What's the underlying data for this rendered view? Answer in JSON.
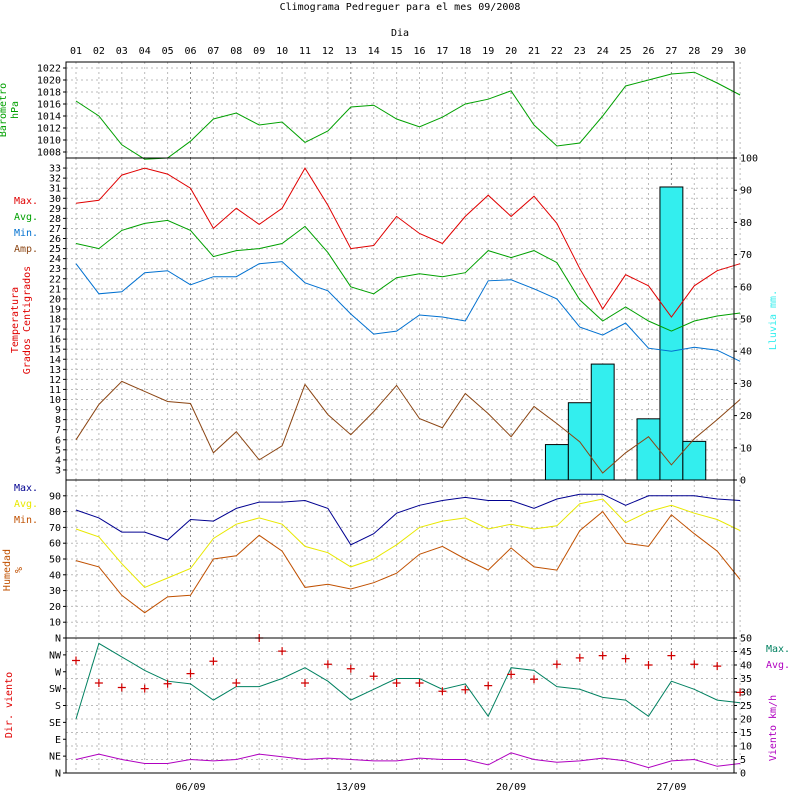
{
  "chart_data": {
    "type": "line",
    "title": "Climograma Pedreguer para el mes 09/2008",
    "top_axis_label": "Dia",
    "days": [
      "01",
      "02",
      "03",
      "04",
      "05",
      "06",
      "07",
      "08",
      "09",
      "10",
      "11",
      "12",
      "13",
      "14",
      "15",
      "16",
      "17",
      "18",
      "19",
      "20",
      "21",
      "22",
      "23",
      "24",
      "25",
      "26",
      "27",
      "28",
      "29",
      "30"
    ],
    "bottom_ticks": [
      {
        "day": 6,
        "label": "06/09"
      },
      {
        "day": 13,
        "label": "13/09"
      },
      {
        "day": 20,
        "label": "20/09"
      },
      {
        "day": 27,
        "label": "27/09"
      }
    ],
    "colors": {
      "green": "#00a000",
      "red": "#e00000",
      "blue": "#0070d0",
      "brown": "#8b4513",
      "navy": "#000090",
      "yellow": "#e8e800",
      "orange": "#c05000",
      "teal": "#008060",
      "magenta": "#b000c0",
      "cyan": "#33eeee",
      "plus": "#d00000"
    },
    "panels": {
      "barometer": {
        "ylabel": [
          "Barometro",
          "hPa"
        ],
        "ylim": [
          1007,
          1023
        ],
        "ticks": [
          1008,
          1010,
          1012,
          1014,
          1016,
          1018,
          1020,
          1022
        ],
        "series": [
          {
            "legend": "",
            "color": "green",
            "values": [
              1016.5,
              1014,
              1009.2,
              1006.8,
              1007,
              1009.8,
              1013.5,
              1014.5,
              1012.5,
              1013,
              1009.6,
              1011.5,
              1015.5,
              1015.8,
              1013.5,
              1012.2,
              1013.8,
              1016,
              1016.8,
              1018.2,
              1012.5,
              1009,
              1009.5,
              1014,
              1019,
              1020,
              1021,
              1021.3,
              1019.5,
              1017.5
            ]
          }
        ]
      },
      "temperature": {
        "ylabel": [
          "Temperatura",
          "Grados Centigrados"
        ],
        "ylim": [
          2,
          34
        ],
        "ticks": [
          3,
          4,
          5,
          6,
          7,
          8,
          9,
          10,
          11,
          12,
          13,
          14,
          15,
          16,
          17,
          18,
          19,
          20,
          21,
          22,
          23,
          24,
          25,
          26,
          27,
          28,
          29,
          30,
          31,
          32,
          33
        ],
        "legend": [
          "Max.",
          "Avg.",
          "Min.",
          "Amp."
        ],
        "series": [
          {
            "legend": "Max.",
            "color": "red",
            "values": [
              29.5,
              29.8,
              32.3,
              33,
              32.4,
              31,
              27,
              29,
              27.4,
              29,
              33,
              29.3,
              25,
              25.3,
              28.2,
              26.5,
              25.5,
              28.2,
              30.3,
              28.2,
              30.2,
              27.5,
              23,
              19,
              22.4,
              21.3,
              18.2,
              21.3,
              22.8,
              23.5
            ]
          },
          {
            "legend": "Avg.",
            "color": "green",
            "values": [
              25.5,
              25,
              26.8,
              27.5,
              27.8,
              26.8,
              24.2,
              24.8,
              25,
              25.5,
              27.2,
              24.6,
              21.2,
              20.5,
              22.1,
              22.5,
              22.2,
              22.6,
              24.8,
              24.1,
              24.8,
              23.6,
              19.9,
              17.8,
              19.2,
              17.8,
              16.8,
              17.8,
              18.3,
              18.6
            ]
          },
          {
            "legend": "Min.",
            "color": "blue",
            "values": [
              23.5,
              20.5,
              20.7,
              22.6,
              22.8,
              21.4,
              22.2,
              22.2,
              23.5,
              23.7,
              21.6,
              20.8,
              18.5,
              16.5,
              16.8,
              18.4,
              18.2,
              17.8,
              21.8,
              21.9,
              21,
              20,
              17.2,
              16.4,
              17.6,
              15.1,
              14.8,
              15.2,
              14.9,
              13.8
            ]
          },
          {
            "legend": "Amp.",
            "color": "brown",
            "values": [
              6,
              9.5,
              11.8,
              10.8,
              9.8,
              9.6,
              4.7,
              6.8,
              4,
              5.4,
              11.5,
              8.5,
              6.5,
              8.8,
              11.4,
              8.1,
              7.2,
              10.6,
              8.6,
              6.3,
              9.3,
              7.6,
              5.8,
              2.7,
              4.7,
              6.3,
              3.5,
              6.1,
              8,
              10
            ]
          }
        ]
      },
      "rain": {
        "ylabel": "Lluvia mm.",
        "ylim": [
          0,
          100
        ],
        "ticks": [
          0,
          10,
          20,
          30,
          40,
          50,
          60,
          70,
          80,
          90,
          100
        ],
        "bars": [
          {
            "day": 22,
            "value": 11
          },
          {
            "day": 23,
            "value": 24
          },
          {
            "day": 24,
            "value": 36
          },
          {
            "day": 26,
            "value": 19
          },
          {
            "day": 27,
            "value": 91
          },
          {
            "day": 28,
            "value": 12
          }
        ]
      },
      "humidity": {
        "ylabel": [
          "Humedad",
          "%"
        ],
        "ylim": [
          0,
          100
        ],
        "ticks": [
          10,
          20,
          30,
          40,
          50,
          60,
          70,
          80,
          90
        ],
        "legend": [
          "Max.",
          "Avg.",
          "Min."
        ],
        "series": [
          {
            "legend": "Max.",
            "color": "navy",
            "values": [
              81,
              76,
              67,
              67,
              62,
              75,
              74,
              82,
              86,
              86,
              87,
              82,
              59,
              66,
              79,
              84,
              87,
              89,
              87,
              87,
              82,
              88,
              91,
              91,
              84,
              90,
              90,
              90,
              88,
              87
            ]
          },
          {
            "legend": "Avg.",
            "color": "yellow",
            "values": [
              69,
              64,
              47,
              32,
              38,
              44,
              63,
              72,
              76,
              72,
              58,
              54,
              45,
              50,
              59,
              70,
              74,
              76,
              69,
              72,
              69,
              71,
              85,
              88,
              73,
              80,
              84,
              79,
              75,
              68
            ]
          },
          {
            "legend": "Min.",
            "color": "orange",
            "values": [
              49,
              45,
              27,
              16,
              26,
              27,
              50,
              52,
              65,
              55,
              32,
              34,
              31,
              35,
              41,
              53,
              58,
              50,
              43,
              57,
              45,
              43,
              68,
              80,
              60,
              58,
              78,
              66,
              55,
              37
            ]
          }
        ]
      },
      "wind_direction": {
        "ylabel": "Dir. viento",
        "categories": [
          "N",
          "NE",
          "E",
          "SE",
          "S",
          "SW",
          "W",
          "NW",
          "N"
        ],
        "values_deg": [
          300,
          240,
          228,
          225,
          238,
          265,
          298,
          240,
          360,
          325,
          240,
          290,
          278,
          258,
          240,
          240,
          218,
          222,
          233,
          263,
          250,
          290,
          307,
          313,
          305,
          288,
          313,
          290,
          285,
          215
        ]
      },
      "wind_speed": {
        "ylabel": "Viento km/h",
        "ylim": [
          0,
          50
        ],
        "ticks": [
          0,
          5,
          10,
          15,
          20,
          25,
          30,
          35,
          40,
          45,
          50
        ],
        "legend": [
          "Max.",
          "Avg."
        ],
        "series": [
          {
            "legend": "Max.",
            "color": "teal",
            "values": [
              20,
              48,
              43,
              38,
              34,
              33,
              27,
              32,
              32,
              35,
              39,
              34,
              27,
              31,
              35,
              35,
              31,
              33,
              21,
              39,
              38,
              32,
              31,
              28,
              27,
              21,
              34,
              31,
              27,
              26
            ]
          },
          {
            "legend": "Avg.",
            "color": "magenta",
            "values": [
              5,
              7,
              5,
              3.5,
              3.5,
              5,
              4.5,
              5,
              7,
              6,
              5,
              5.5,
              5,
              4.5,
              4.5,
              5.5,
              5,
              5,
              3,
              7.5,
              5,
              4,
              4.5,
              5.5,
              4.5,
              2,
              4.5,
              5,
              2.5,
              3.5
            ]
          }
        ]
      }
    }
  }
}
